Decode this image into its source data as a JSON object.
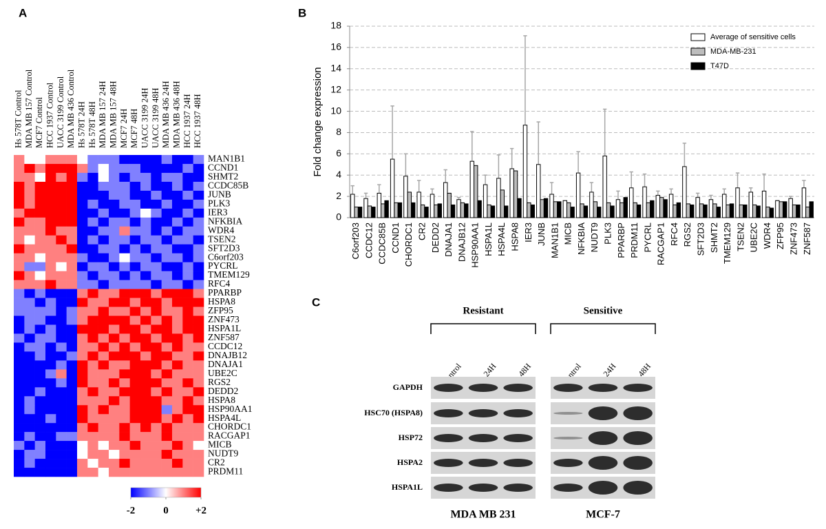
{
  "panels": [
    "A",
    "B",
    "C"
  ],
  "chart_data": [
    {
      "type": "heatmap",
      "columns": [
        "Hs 578T Control",
        "MDA MB 157 Control",
        "MCF7 Control",
        "HCC 1937 Control",
        "UACC 3199 Control",
        "MDA MB 436 Control",
        "Hs 578T 24H",
        "Hs 578T 48H",
        "MDA MB 157 24H",
        "MDA MB 157 48H",
        "MCF7 24H",
        "MCF7 48H",
        "UACC 3199 24H",
        "UACC 3199 48H",
        "MDA MB 436 24H",
        "MDA MB 436 48H",
        "HCC 1937 24H",
        "HCC 1937 48H"
      ],
      "rows": [
        "MAN1B1",
        "CCND1",
        "SHMT2",
        "CCDC85B",
        "JUNB",
        "PLK3",
        "IER3",
        "NFKBIA",
        "WDR4",
        "TSEN2",
        "SFT2D3",
        "C6orf203",
        "PYCRL",
        "TMEM129",
        "RFC4",
        "PPARBP",
        "HSPA8",
        "ZFP95",
        "ZNF473",
        "HSPA1L",
        "ZNF587",
        "CCDC12",
        "DNAJB12",
        "DNAJA1",
        "UBE2C",
        "RGS2",
        "DEDD2",
        "HSPA8",
        "HSP90AA1",
        "HSPA4L",
        "CHORDC1",
        "RACGAP1",
        "MICB",
        "NUDT9",
        "CR2",
        "PRDM11"
      ],
      "values": [
        [
          1,
          0,
          0,
          1,
          1,
          1,
          0,
          -1,
          -1,
          -1,
          -2,
          -2,
          -2,
          -2,
          -1,
          -2,
          -2,
          -1
        ],
        [
          1,
          2,
          1,
          2,
          2,
          2,
          1,
          -1,
          0,
          -1,
          -1,
          -1,
          -2,
          -2,
          -2,
          -2,
          -1,
          -2
        ],
        [
          1,
          1,
          0,
          2,
          1,
          2,
          -1,
          -2,
          0,
          -1,
          -2,
          -1,
          -1,
          -2,
          -1,
          -1,
          -2,
          -2
        ],
        [
          2,
          1,
          2,
          2,
          2,
          2,
          -2,
          -2,
          -1,
          -1,
          -1,
          -2,
          -1,
          -2,
          -2,
          -1,
          -2,
          -1
        ],
        [
          2,
          1,
          2,
          2,
          2,
          2,
          -2,
          -2,
          -2,
          -1,
          -1,
          -2,
          -2,
          -1,
          -2,
          -2,
          -1,
          -2
        ],
        [
          2,
          1,
          2,
          2,
          2,
          2,
          -2,
          -1,
          -2,
          -2,
          -1,
          -1,
          -2,
          -2,
          -1,
          -2,
          -2,
          -1
        ],
        [
          1,
          2,
          2,
          2,
          2,
          2,
          -2,
          -2,
          -1,
          -2,
          -2,
          -1,
          0,
          -1,
          -2,
          -2,
          -1,
          -2
        ],
        [
          2,
          1,
          1,
          2,
          2,
          2,
          -2,
          -1,
          -2,
          -1,
          -1,
          -2,
          -1,
          -2,
          -2,
          -1,
          -2,
          -1
        ],
        [
          1,
          1,
          1,
          2,
          1,
          1,
          -2,
          -2,
          -1,
          -1,
          1,
          -1,
          -1,
          -2,
          -1,
          -2,
          -1,
          -1
        ],
        [
          1,
          0,
          1,
          1,
          2,
          1,
          -2,
          -1,
          -2,
          -1,
          -1,
          -2,
          -1,
          -1,
          -2,
          -1,
          -1,
          -2
        ],
        [
          2,
          1,
          1,
          1,
          1,
          2,
          -2,
          -2,
          -1,
          -1,
          -2,
          -1,
          -2,
          -1,
          -1,
          -2,
          -2,
          -1
        ],
        [
          1,
          1,
          0,
          1,
          1,
          1,
          -1,
          -2,
          -2,
          -1,
          0,
          -1,
          -1,
          -2,
          -1,
          -1,
          -2,
          -1
        ],
        [
          1,
          -1,
          -1,
          1,
          0,
          1,
          -2,
          -1,
          -1,
          -2,
          -1,
          -2,
          -1,
          -1,
          -2,
          -2,
          -1,
          -2
        ],
        [
          2,
          1,
          0,
          1,
          1,
          1,
          -1,
          -2,
          -1,
          -1,
          -2,
          -1,
          -2,
          -1,
          -1,
          -2,
          -1,
          -2
        ],
        [
          1,
          1,
          1,
          2,
          1,
          1,
          -1,
          -1,
          -2,
          -1,
          -1,
          -1,
          -1,
          -2,
          -1,
          -1,
          -2,
          -1
        ],
        [
          -1,
          -2,
          -1,
          -2,
          -2,
          -2,
          1,
          2,
          1,
          1,
          2,
          2,
          2,
          1,
          2,
          2,
          2,
          1
        ],
        [
          -1,
          -1,
          -2,
          -1,
          -2,
          -2,
          2,
          1,
          1,
          2,
          2,
          1,
          2,
          2,
          1,
          2,
          2,
          2
        ],
        [
          -1,
          -1,
          -1,
          -1,
          -2,
          -1,
          1,
          1,
          2,
          1,
          1,
          2,
          1,
          2,
          1,
          1,
          2,
          1
        ],
        [
          -2,
          -1,
          -1,
          -2,
          -2,
          -1,
          1,
          2,
          2,
          2,
          2,
          1,
          2,
          1,
          2,
          1,
          2,
          2
        ],
        [
          -2,
          -1,
          -2,
          -1,
          -2,
          -2,
          2,
          2,
          2,
          1,
          2,
          2,
          1,
          2,
          2,
          1,
          2,
          2
        ],
        [
          -1,
          -2,
          -1,
          -1,
          -2,
          -2,
          1,
          2,
          1,
          2,
          1,
          2,
          2,
          1,
          2,
          2,
          1,
          2
        ],
        [
          -2,
          -1,
          -1,
          -2,
          -1,
          -2,
          1,
          1,
          2,
          1,
          2,
          1,
          2,
          2,
          1,
          2,
          1,
          1
        ],
        [
          -2,
          -2,
          -1,
          -2,
          -2,
          -1,
          1,
          2,
          1,
          2,
          2,
          2,
          1,
          2,
          2,
          1,
          1,
          2
        ],
        [
          -2,
          -2,
          -2,
          -2,
          -1,
          -2,
          2,
          1,
          2,
          1,
          1,
          2,
          2,
          2,
          1,
          2,
          1,
          1
        ],
        [
          -2,
          -2,
          -2,
          -1,
          1,
          -2,
          2,
          1,
          1,
          1,
          2,
          2,
          2,
          1,
          2,
          1,
          1,
          1
        ],
        [
          -2,
          -2,
          -2,
          -2,
          -1,
          -2,
          2,
          1,
          1,
          2,
          1,
          2,
          2,
          2,
          1,
          1,
          2,
          1
        ],
        [
          -2,
          -2,
          -1,
          -2,
          -2,
          -2,
          1,
          2,
          1,
          1,
          2,
          2,
          2,
          1,
          2,
          1,
          1,
          2
        ],
        [
          -2,
          -1,
          -2,
          -2,
          -2,
          -2,
          1,
          1,
          1,
          2,
          1,
          2,
          2,
          2,
          1,
          1,
          2,
          1
        ],
        [
          -2,
          -1,
          -2,
          -2,
          -2,
          -2,
          2,
          1,
          2,
          1,
          1,
          2,
          2,
          2,
          -1,
          1,
          2,
          2
        ],
        [
          -2,
          -2,
          -2,
          -1,
          -2,
          -2,
          2,
          1,
          1,
          1,
          1,
          2,
          2,
          2,
          1,
          2,
          1,
          2
        ],
        [
          -2,
          -2,
          -2,
          -2,
          -2,
          -2,
          1,
          2,
          1,
          1,
          2,
          1,
          2,
          1,
          2,
          1,
          1,
          1
        ],
        [
          -2,
          -1,
          -2,
          -2,
          -1,
          -1,
          1,
          1,
          1,
          1,
          2,
          1,
          1,
          1,
          2,
          1,
          1,
          1
        ],
        [
          -1,
          -2,
          -1,
          -2,
          -2,
          -2,
          0,
          1,
          0,
          1,
          1,
          2,
          1,
          1,
          1,
          2,
          1,
          0
        ],
        [
          -2,
          -1,
          -1,
          -2,
          -2,
          -2,
          0,
          1,
          1,
          0,
          1,
          1,
          1,
          1,
          2,
          1,
          1,
          1
        ],
        [
          -2,
          -1,
          -2,
          -2,
          -2,
          -2,
          1,
          0,
          1,
          1,
          2,
          1,
          1,
          1,
          1,
          2,
          1,
          1
        ],
        [
          -2,
          -2,
          -2,
          -2,
          -2,
          -2,
          1,
          1,
          0,
          1,
          1,
          1,
          1,
          1,
          1,
          1,
          1,
          1
        ]
      ],
      "zlim": [
        -2,
        2
      ],
      "colors": [
        "#0000ff",
        "#ffffff",
        "#ff0000"
      ],
      "colorbar_ticks": [
        -2,
        0,
        {
          "value": 2,
          "label": "+2"
        }
      ]
    },
    {
      "type": "bar",
      "ylabel": "Fold change expression",
      "categories": [
        "C6orf203",
        "CCDC12",
        "CCDC85B",
        "CCND1",
        "CHORDC1",
        "CR2",
        "DEDD2",
        "DNAJA1",
        "DNAJB12",
        "HSP90AA1",
        "HSPA1L",
        "HSPA4L",
        "HSPA8",
        "IER3",
        "JUNB",
        "MAN1B1",
        "MICB",
        "NFKBIA",
        "NUDT9",
        "PLK3",
        "PPARBP",
        "PRDM11",
        "PYCRL",
        "RACGAP1",
        "RFC4",
        "RGS2",
        "SFT2D3",
        "SHMT2",
        "TMEM129",
        "TSEN2",
        "UBE2C",
        "WDR4",
        "ZFP95",
        "ZNF473",
        "ZNF587"
      ],
      "series": [
        {
          "name": "Average of sensitive cells",
          "color": "#ffffff",
          "values": [
            2.2,
            1.8,
            2.3,
            5.5,
            3.9,
            2.4,
            2.2,
            3.3,
            1.7,
            5.3,
            3.1,
            3.7,
            4.6,
            8.7,
            5.0,
            2.2,
            1.6,
            4.2,
            2.4,
            5.8,
            1.7,
            2.8,
            2.9,
            2.1,
            2.2,
            4.8,
            1.9,
            1.7,
            2.2,
            2.8,
            2.4,
            2.5,
            1.6,
            1.8,
            2.8
          ],
          "errors": [
            0.8,
            0.5,
            0.8,
            5.0,
            2.1,
            1.1,
            0.5,
            1.2,
            0.2,
            2.8,
            0.9,
            2.2,
            1.9,
            8.4,
            4.0,
            1.1,
            0,
            2.0,
            0.9,
            4.4,
            0.8,
            1.5,
            1.2,
            0.4,
            0.5,
            2.2,
            0.4,
            0.4,
            0.5,
            1.4,
            0.4,
            1.6,
            0,
            0.2,
            0.7
          ]
        },
        {
          "name": "MDA-MB-231",
          "color": "#bdbdbd",
          "values": [
            1.0,
            1.1,
            1.3,
            1.4,
            2.4,
            1.2,
            1.2,
            2.3,
            1.4,
            4.9,
            1.2,
            2.6,
            4.4,
            1.4,
            1.7,
            1.5,
            1.4,
            1.3,
            1.5,
            1.4,
            1.4,
            1.4,
            1.4,
            1.9,
            1.2,
            1.3,
            1.3,
            1.3,
            1.2,
            1.2,
            1.2,
            1.0,
            1.5,
            1.2,
            1.0
          ]
        },
        {
          "name": "T47D",
          "color": "#000000",
          "values": [
            1.0,
            1.0,
            1.6,
            1.4,
            1.4,
            1.0,
            1.3,
            1.2,
            1.3,
            1.6,
            1.1,
            1.1,
            1.8,
            1.2,
            1.8,
            1.5,
            1.0,
            1.1,
            1.0,
            1.1,
            1.9,
            1.2,
            1.6,
            1.7,
            1.4,
            1.2,
            1.2,
            1.0,
            1.3,
            1.2,
            1.1,
            0.9,
            1.5,
            1.2,
            1.5
          ]
        }
      ],
      "ylim": [
        0,
        18
      ],
      "yticks": [
        0,
        2,
        4,
        6,
        8,
        10,
        12,
        14,
        16,
        18
      ],
      "grid": true,
      "error_color": "#a6a6a6"
    }
  ],
  "blot": {
    "groups": [
      {
        "label": "Resistant",
        "cell_line": "MDA MB 231",
        "lanes": [
          "Control",
          "24H",
          "48H"
        ]
      },
      {
        "label": "Sensitive",
        "cell_line": "MCF-7",
        "lanes": [
          "Control",
          "24H",
          "48H"
        ]
      }
    ],
    "proteins": [
      "GAPDH",
      "HSC70 (HSPA8)",
      "HSP72",
      "HSPA2",
      "HSPA1L"
    ]
  }
}
